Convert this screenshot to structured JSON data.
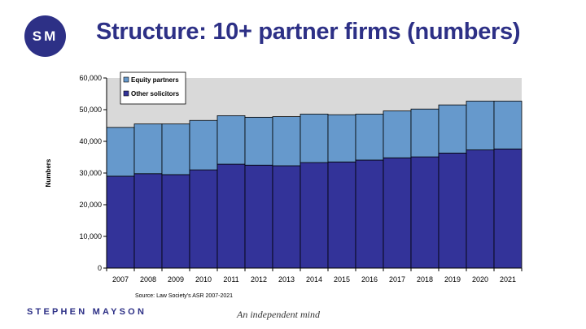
{
  "logo": {
    "initials": "SM"
  },
  "slide": {
    "title": "Structure: 10+ partner firms (numbers)"
  },
  "footer": {
    "brand": "STEPHEN MAYSON",
    "tagline": "An independent mind"
  },
  "colors": {
    "brand": "#2d3086",
    "other_solicitors": "#333399",
    "equity_partners": "#6699cc",
    "plot_background": "#d9d9d9"
  },
  "chart_data": {
    "type": "bar",
    "stacked": true,
    "title": "",
    "xlabel": "",
    "ylabel": "Numbers",
    "source": "Source: Law Society's ASR 2007-2021",
    "ylim": [
      0,
      60000
    ],
    "yticks": [
      0,
      10000,
      20000,
      30000,
      40000,
      50000,
      60000
    ],
    "ytick_labels": [
      "0",
      "10,000",
      "20,000",
      "30,000",
      "40,000",
      "50,000",
      "60,000"
    ],
    "legend_position": "top-left",
    "grid": false,
    "categories": [
      "2007",
      "2008",
      "2009",
      "2010",
      "2011",
      "2012",
      "2013",
      "2014",
      "2015",
      "2016",
      "2017",
      "2018",
      "2019",
      "2020",
      "2021"
    ],
    "series": [
      {
        "name": "Other solicitors",
        "color": "#333399",
        "values": [
          29000,
          29800,
          29500,
          31000,
          32800,
          32500,
          32300,
          33300,
          33500,
          34100,
          34800,
          35100,
          36300,
          37300,
          37600
        ]
      },
      {
        "name": "Equity partners",
        "color": "#6699cc",
        "values": [
          15400,
          15700,
          16000,
          15600,
          15300,
          15100,
          15500,
          15300,
          14900,
          14500,
          14800,
          15100,
          15200,
          15400,
          15100
        ]
      }
    ]
  }
}
